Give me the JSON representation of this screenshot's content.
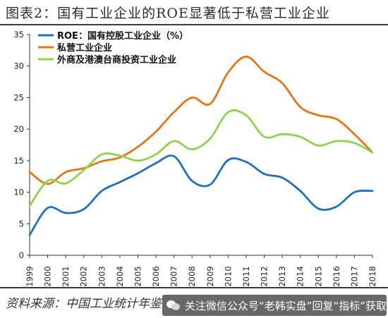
{
  "title": "图表2：国有工业企业的ROE显著低于私营工业企业",
  "source": "资料来源：中国工业统计年鉴",
  "watermark": {
    "text": "关注微信公众号“老韩实盘”回复“指标”获取",
    "icon": "wechat-icon"
  },
  "chart_data": {
    "type": "line",
    "title": "",
    "xlabel": "",
    "ylabel": "",
    "x": [
      1999,
      2000,
      2001,
      2002,
      2003,
      2004,
      2005,
      2006,
      2007,
      2008,
      2009,
      2010,
      2011,
      2012,
      2013,
      2014,
      2015,
      2016,
      2017,
      2018
    ],
    "ylim": [
      0,
      35
    ],
    "yticks": [
      0,
      5,
      10,
      15,
      20,
      25,
      30,
      35
    ],
    "grid": false,
    "legend_position": "top-left",
    "series": [
      {
        "name": "ROE：国有控股工业企业（%）",
        "color": "#1f6fbf",
        "values": [
          3.2,
          7.5,
          6.7,
          7.3,
          10.2,
          11.6,
          13.0,
          14.6,
          15.7,
          11.8,
          11.2,
          15.1,
          14.8,
          12.9,
          12.3,
          10.2,
          7.4,
          7.7,
          10.0,
          10.2
        ]
      },
      {
        "name": "私营工业企业",
        "color": "#e2761b",
        "values": [
          13.2,
          11.3,
          13.2,
          13.8,
          14.9,
          15.5,
          17.2,
          19.6,
          22.7,
          25.0,
          24.0,
          29.0,
          31.5,
          29.1,
          27.3,
          23.5,
          22.2,
          21.6,
          19.2,
          16.3
        ]
      },
      {
        "name": "外商及港澳台商投资工业企业",
        "color": "#8fd24e",
        "values": [
          7.8,
          11.8,
          11.4,
          13.5,
          16.0,
          15.8,
          15.0,
          16.0,
          18.1,
          16.8,
          18.5,
          22.7,
          22.2,
          18.8,
          19.2,
          18.8,
          17.4,
          18.1,
          17.8,
          16.3
        ]
      }
    ]
  }
}
